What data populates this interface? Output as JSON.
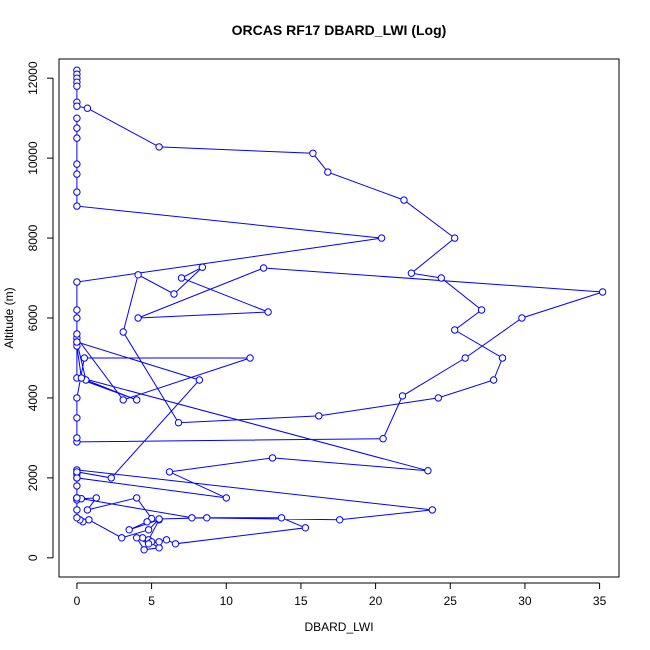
{
  "chart_data": {
    "type": "line",
    "title": "ORCAS RF17 DBARD_LWI (Log)",
    "xlabel": "DBARD_LWI",
    "ylabel": "Altitude (m)",
    "xlim": [
      -1.2,
      36.3
    ],
    "ylim": [
      -480,
      12480
    ],
    "xticks": [
      0,
      5,
      10,
      15,
      20,
      25,
      30,
      35
    ],
    "yticks": [
      0,
      2000,
      4000,
      6000,
      8000,
      10000,
      12000
    ],
    "grid": false,
    "legend": "none",
    "marker": "open-circle",
    "color": "#0000ff",
    "series": [
      {
        "x": [
          0,
          0,
          0,
          0,
          0,
          0,
          0,
          0.7,
          5.5,
          15.8,
          16.8,
          21.9,
          25.3,
          22.4,
          24.4,
          27.1,
          25.3,
          28.5,
          27.9,
          24.2,
          16.2,
          6.8,
          3.1,
          4.1,
          6.5,
          8.4,
          7.0,
          12.8,
          4.1,
          12.5,
          35.2,
          29.8,
          26.0,
          21.8,
          20.5,
          0,
          0,
          0,
          0,
          0.5,
          11.6,
          3.1,
          0,
          0,
          0.6,
          4.0,
          0,
          0,
          0.3,
          23.5,
          13.1,
          6.2,
          10.0,
          0,
          0,
          0,
          23.8,
          17.6,
          7.7,
          0,
          0,
          0,
          0.3,
          1.3,
          0.7,
          4.0,
          5.0,
          4.7,
          3.5,
          5.5,
          4.8,
          5.0,
          4.4,
          5.5,
          4.5,
          4.0,
          4.8,
          5.5,
          6.0,
          6.6,
          15.3,
          13.7,
          8.7,
          5.5,
          4.8,
          3.0,
          0.8,
          0.4,
          0.2,
          0,
          0,
          0,
          0,
          0,
          0,
          2.3,
          8.2,
          0,
          0,
          0,
          0,
          0,
          20.4,
          0,
          0,
          0,
          0,
          0,
          0,
          0
        ],
        "y": [
          12200,
          12100,
          12000,
          11900,
          11800,
          11400,
          11300,
          11250,
          10280,
          10120,
          9650,
          8950,
          8000,
          7120,
          7000,
          6200,
          5700,
          5000,
          4450,
          4000,
          3550,
          3380,
          5650,
          7080,
          6600,
          7270,
          7000,
          6150,
          6000,
          7250,
          6650,
          6000,
          5000,
          4050,
          2980,
          2900,
          3000,
          3500,
          4000,
          5000,
          5000,
          3950,
          5500,
          5400,
          4450,
          3950,
          4500,
          5300,
          4500,
          2180,
          2500,
          2150,
          1500,
          2000,
          2100,
          2200,
          1200,
          950,
          1000,
          1500,
          1450,
          1500,
          1480,
          1500,
          1200,
          1500,
          980,
          900,
          700,
          950,
          450,
          400,
          500,
          250,
          200,
          500,
          350,
          400,
          450,
          350,
          750,
          1000,
          1000,
          970,
          700,
          500,
          950,
          900,
          950,
          1000,
          1200,
          1500,
          1800,
          2000,
          2150,
          2000,
          4450,
          5400,
          5600,
          6000,
          6200,
          6900,
          8000,
          8800,
          9150,
          9600,
          9850,
          10500,
          10750,
          11000
        ]
      }
    ]
  }
}
